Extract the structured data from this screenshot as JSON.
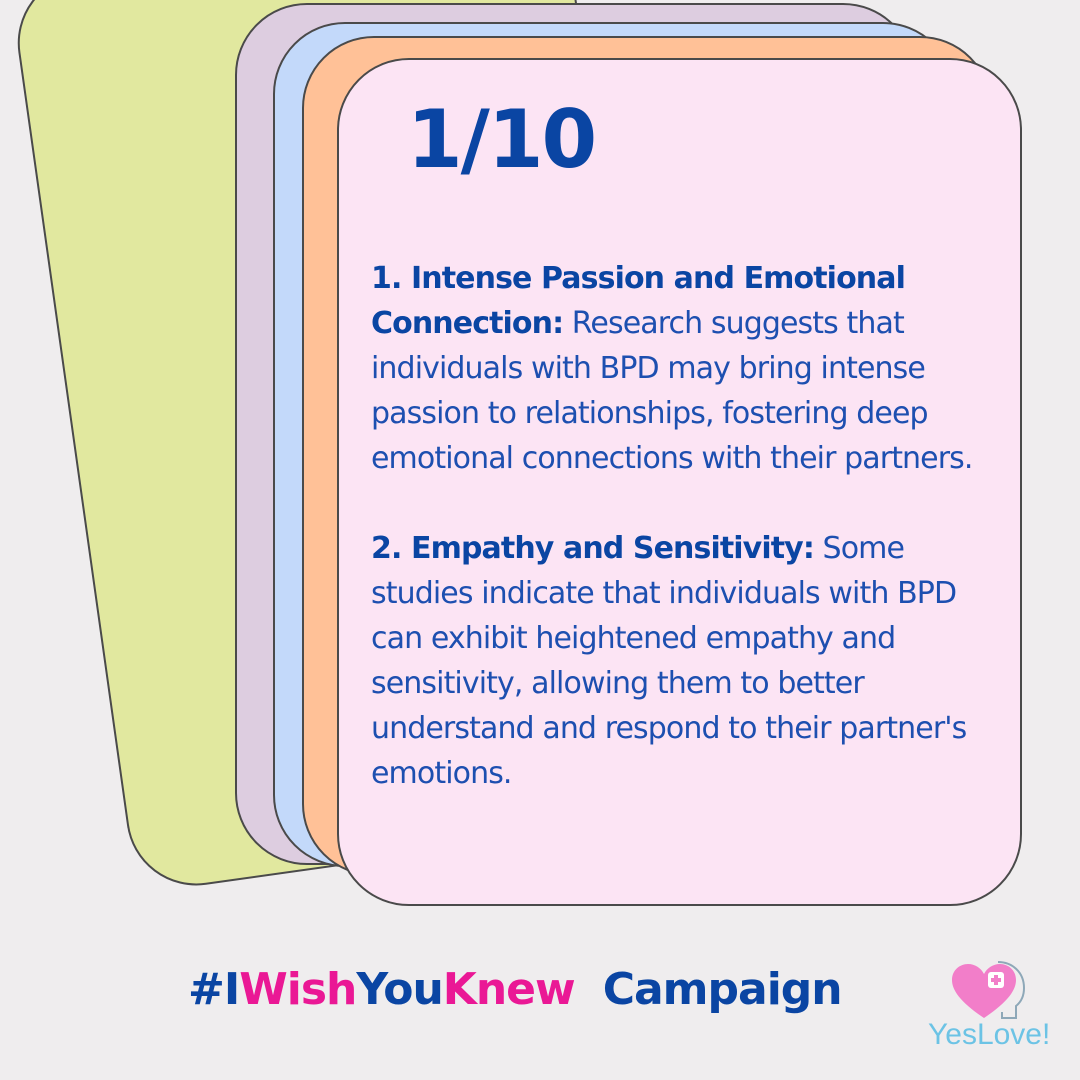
{
  "counter": "1/10",
  "points": [
    {
      "lead": "1. Intense Passion and Emotional Connection:",
      "text": " Research suggests that individuals with BPD may bring intense passion to relationships, fostering deep emotional connections with their partners."
    },
    {
      "lead": "2. Empathy and Sensitivity:",
      "text": " Some studies indicate that individuals with BPD can exhibit heightened empathy and sensitivity, allowing them to better understand and respond to their partner's emotions."
    }
  ],
  "campaign": {
    "hash_i": "#I",
    "wish": "Wish",
    "you": "You",
    "knew": "Knew",
    "word": "Campaign"
  },
  "logo": {
    "text": "YesLove!",
    "icon": "heart-plus-head-icon"
  },
  "colors": {
    "background": "#efedee",
    "card_green": "#e1e89f",
    "card_lavender": "#ddcde0",
    "card_blue": "#c3d9fa",
    "card_orange": "#ffc197",
    "card_front": "#fce4f4",
    "text_blue": "#0a45a3",
    "accent_pink": "#ea1895",
    "logo_blue": "#6cc3e5"
  }
}
